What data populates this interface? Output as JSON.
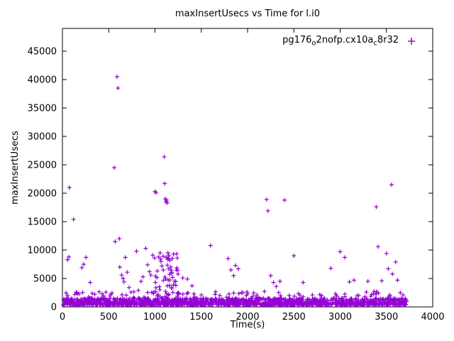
{
  "chart_data": {
    "type": "scatter",
    "title": "maxInsertUsecs vs Time for l.i0",
    "xlabel": "Time(s)",
    "ylabel": "maxInsertUsecs",
    "xlim": [
      0,
      4000
    ],
    "ylim": [
      0,
      49000
    ],
    "x_ticks": [
      0,
      500,
      1000,
      1500,
      2000,
      2500,
      3000,
      3500,
      4000
    ],
    "y_ticks": [
      0,
      5000,
      10000,
      15000,
      20000,
      25000,
      30000,
      35000,
      40000,
      45000
    ],
    "grid": false,
    "legend_position": "top-right-inside",
    "marker": "plus",
    "marker_color": "#9400d3",
    "series_name": "pg176_o2nofp.cx10a_c8r32",
    "points": [
      [
        55,
        8300
      ],
      [
        70,
        8800
      ],
      [
        75,
        21000
      ],
      [
        120,
        15400
      ],
      [
        150,
        2600
      ],
      [
        180,
        2300
      ],
      [
        210,
        6900
      ],
      [
        230,
        7500
      ],
      [
        255,
        8700
      ],
      [
        300,
        4300
      ],
      [
        320,
        2400
      ],
      [
        430,
        2300
      ],
      [
        470,
        2600
      ],
      [
        520,
        2200
      ],
      [
        560,
        24500
      ],
      [
        570,
        11500
      ],
      [
        590,
        40500
      ],
      [
        600,
        38500
      ],
      [
        615,
        12000
      ],
      [
        620,
        7000
      ],
      [
        640,
        5600
      ],
      [
        655,
        5000
      ],
      [
        665,
        4400
      ],
      [
        680,
        8700
      ],
      [
        700,
        6100
      ],
      [
        720,
        3400
      ],
      [
        740,
        2600
      ],
      [
        800,
        9800
      ],
      [
        820,
        2900
      ],
      [
        850,
        4500
      ],
      [
        870,
        5300
      ],
      [
        900,
        10300
      ],
      [
        920,
        7400
      ],
      [
        940,
        6200
      ],
      [
        955,
        5600
      ],
      [
        975,
        9100
      ],
      [
        1000,
        20300
      ],
      [
        1012,
        20100
      ],
      [
        1040,
        8800
      ],
      [
        1055,
        9500
      ],
      [
        1065,
        8000
      ],
      [
        1075,
        7200
      ],
      [
        1090,
        6500
      ],
      [
        1100,
        26400
      ],
      [
        1105,
        21700
      ],
      [
        1110,
        19000
      ],
      [
        1118,
        18500
      ],
      [
        1125,
        18800
      ],
      [
        1132,
        18300
      ],
      [
        1140,
        9500
      ],
      [
        1150,
        9000
      ],
      [
        1160,
        8200
      ],
      [
        1170,
        7000
      ],
      [
        1180,
        6100
      ],
      [
        1190,
        5200
      ],
      [
        1200,
        9300
      ],
      [
        1210,
        4500
      ],
      [
        1225,
        3800
      ],
      [
        1250,
        2500
      ],
      [
        1300,
        5100
      ],
      [
        1350,
        4900
      ],
      [
        1400,
        3700
      ],
      [
        1420,
        2300
      ],
      [
        1500,
        2100
      ],
      [
        1600,
        10800
      ],
      [
        1650,
        2200
      ],
      [
        1700,
        2000
      ],
      [
        1790,
        8500
      ],
      [
        1820,
        6500
      ],
      [
        1850,
        5500
      ],
      [
        1870,
        7300
      ],
      [
        1900,
        6700
      ],
      [
        1950,
        2500
      ],
      [
        2000,
        2300
      ],
      [
        2060,
        1900
      ],
      [
        2100,
        2100
      ],
      [
        2205,
        18900
      ],
      [
        2220,
        16900
      ],
      [
        2250,
        5500
      ],
      [
        2280,
        4300
      ],
      [
        2310,
        3600
      ],
      [
        2350,
        4500
      ],
      [
        2400,
        18800
      ],
      [
        2450,
        2000
      ],
      [
        2500,
        9000
      ],
      [
        2600,
        4300
      ],
      [
        2700,
        2100
      ],
      [
        2800,
        2000
      ],
      [
        2900,
        6800
      ],
      [
        2950,
        2300
      ],
      [
        3000,
        9700
      ],
      [
        3050,
        8700
      ],
      [
        3100,
        4400
      ],
      [
        3150,
        4700
      ],
      [
        3200,
        2000
      ],
      [
        3300,
        4500
      ],
      [
        3340,
        2200
      ],
      [
        3390,
        17600
      ],
      [
        3410,
        10600
      ],
      [
        3450,
        4600
      ],
      [
        3500,
        9400
      ],
      [
        3520,
        6700
      ],
      [
        3555,
        21500
      ],
      [
        3565,
        5800
      ],
      [
        3600,
        7900
      ],
      [
        3620,
        4700
      ],
      [
        3650,
        2500
      ],
      [
        3680,
        2100
      ]
    ],
    "baseline_band": {
      "x_range": [
        5,
        3720
      ],
      "y_range": [
        380,
        1550
      ],
      "count": 1600
    },
    "mid_scatter": {
      "x_range": [
        5,
        3720
      ],
      "y_range": [
        1500,
        2750
      ],
      "count": 70
    },
    "cluster": {
      "x_range": [
        980,
        1260
      ],
      "y_range": [
        1800,
        9800
      ],
      "count": 45
    }
  },
  "legend": {
    "parts": [
      "pg176",
      "o",
      "2nofp.cx10a",
      "c",
      "8r32"
    ]
  }
}
